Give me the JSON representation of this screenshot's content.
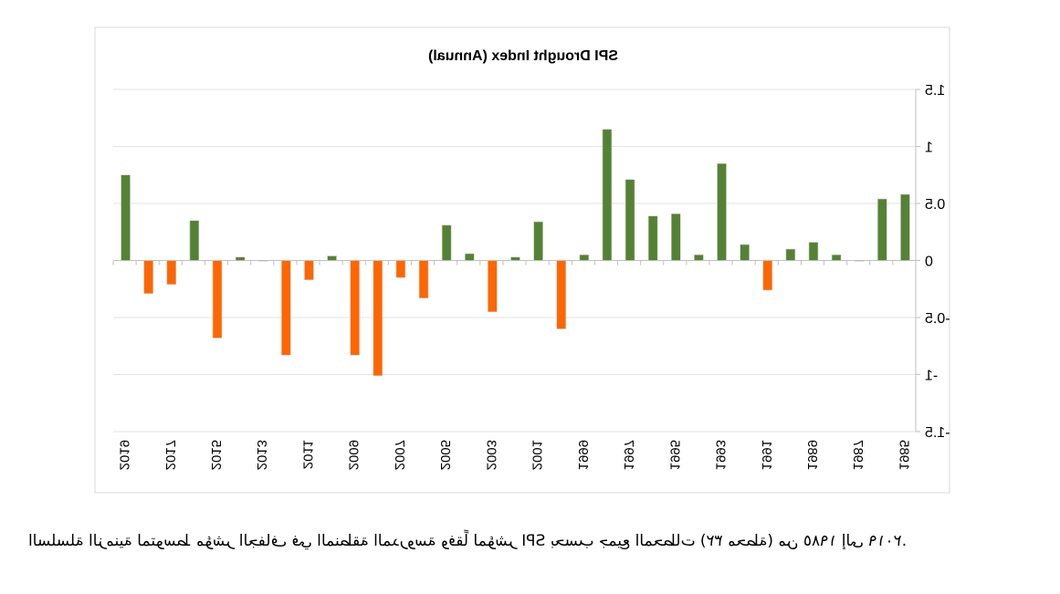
{
  "chart_data": {
    "type": "bar",
    "title": "SPI Drought Index (Annual)",
    "xlabel": "",
    "ylabel": "",
    "ylim": [
      -1.5,
      1.5
    ],
    "yticks": [
      -1.5,
      -1,
      -0.5,
      0,
      0.5,
      1,
      1.5
    ],
    "ytick_labels": [
      "-1.5",
      "-1",
      "-0.5",
      "0",
      "0.5",
      "1",
      "1.5"
    ],
    "grid": true,
    "legend": "none",
    "categories": [
      1985,
      1986,
      1987,
      1988,
      1989,
      1990,
      1991,
      1992,
      1993,
      1994,
      1995,
      1996,
      1997,
      1998,
      1999,
      2000,
      2001,
      2002,
      2003,
      2004,
      2005,
      2006,
      2007,
      2008,
      2009,
      2010,
      2011,
      2012,
      2013,
      2014,
      2015,
      2016,
      2017,
      2018,
      2019
    ],
    "xtick_labels": [
      "1985",
      "1987",
      "1989",
      "1991",
      "1993",
      "1995",
      "1997",
      "1999",
      "2001",
      "2003",
      "2005",
      "2007",
      "2009",
      "2011",
      "2013",
      "2015",
      "2017",
      "2019"
    ],
    "values": [
      0.58,
      0.54,
      0.0,
      0.05,
      0.16,
      0.1,
      -0.26,
      0.14,
      0.85,
      0.05,
      0.41,
      0.39,
      0.71,
      1.15,
      0.05,
      -0.6,
      0.34,
      0.03,
      -0.45,
      0.06,
      0.31,
      -0.33,
      -0.15,
      -1.01,
      -0.83,
      0.04,
      -0.17,
      -0.83,
      0.0,
      0.03,
      -0.68,
      0.35,
      -0.21,
      -0.29,
      0.75
    ],
    "colors": {
      "positive": "#548235",
      "negative": "#FF6600"
    }
  },
  "caption": "السلسلة الزمنية لمتوسط مؤشر الجفاف في المنطقة المدروسة وفقاً لمؤشر SPI بحسب جميع المحطات (٣٢ محطة) من ١٩٨٥ إلى ٢٠١٩."
}
